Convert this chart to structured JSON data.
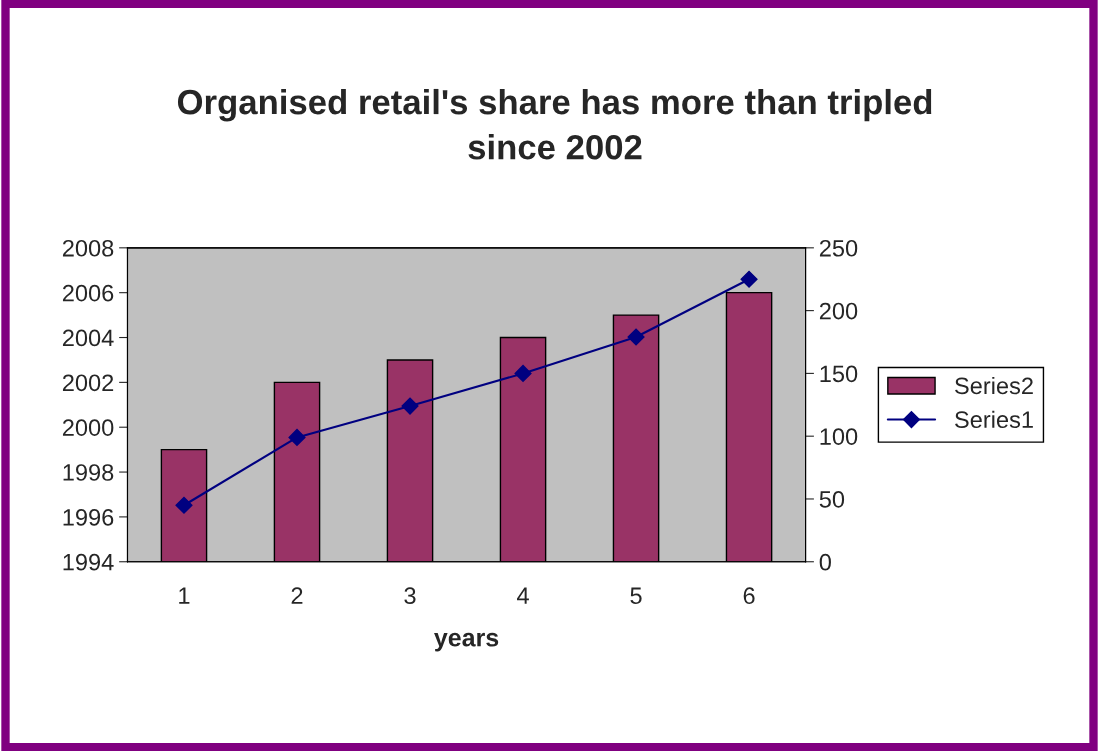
{
  "chart_data": {
    "type": "bar",
    "title": "Organised retail's share has more than tripled\nsince 2002",
    "xlabel": "years",
    "categories": [
      "1",
      "2",
      "3",
      "4",
      "5",
      "6"
    ],
    "series": [
      {
        "name": "Series2",
        "color": "#993366",
        "values": [
          1999,
          2002,
          2003,
          2004,
          2005,
          2006
        ]
      },
      {
        "name": "Series1",
        "type": "line",
        "axis": "y2",
        "color": "#000080",
        "marker": "diamond",
        "values": [
          45,
          99,
          124,
          150,
          179,
          225
        ]
      }
    ],
    "ylim": [
      1994,
      2008
    ],
    "yticks": [
      1994,
      1996,
      1998,
      2000,
      2002,
      2004,
      2006,
      2008
    ],
    "y2lim": [
      0,
      250
    ],
    "y2ticks": [
      0,
      50,
      100,
      150,
      200,
      250
    ],
    "grid": false,
    "legend": "right"
  }
}
